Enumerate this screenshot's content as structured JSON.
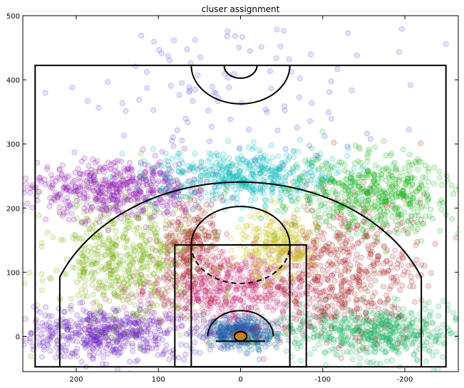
{
  "chart_data": {
    "type": "scatter",
    "title": "cluser assignment",
    "xlabel": "",
    "ylabel": "",
    "xlim": [
      265,
      -265
    ],
    "ylim": [
      -55,
      500
    ],
    "x_axis_inverted": true,
    "x_ticks": [
      200,
      100,
      0,
      -100,
      -200
    ],
    "y_ticks": [
      0,
      100,
      200,
      300,
      400,
      500
    ],
    "grid": false,
    "legend": "none",
    "marker": "circle",
    "marker_opacity": 0.15,
    "court": {
      "boundary": {
        "x": [
          -250,
          250
        ],
        "y": [
          -47.5,
          422.5
        ]
      },
      "outer_key": {
        "x": [
          -80,
          80
        ],
        "y": [
          -47.5,
          142.5
        ]
      },
      "inner_key": {
        "x": [
          -60,
          60
        ],
        "y": [
          -47.5,
          142.5
        ]
      },
      "free_throw_circle": {
        "center": [
          0,
          142.5
        ],
        "radius": 60
      },
      "restricted_area_radius": 40,
      "backboard": {
        "x": [
          -30,
          30
        ],
        "y": -7.5
      },
      "hoop": {
        "center": [
          0,
          0
        ],
        "radius": 7.5
      },
      "three_point": {
        "corner_x": 220,
        "corner_top_y": 92.5,
        "arc_radius": 237.5
      },
      "center_court": {
        "center": [
          0,
          422.5
        ],
        "outer_radius": 60,
        "inner_radius": 20
      }
    },
    "series": [
      {
        "color": "#1f5fa8",
        "center": [
          0,
          5
        ],
        "spread": [
          22,
          12
        ],
        "count": 420
      },
      {
        "color": "#e87d10",
        "center": [
          0,
          0
        ],
        "spread": [
          4,
          3
        ],
        "count": 40
      },
      {
        "color": "#6a1fc0",
        "center": [
          160,
          5
        ],
        "spread": [
          55,
          20
        ],
        "count": 550
      },
      {
        "color": "#12b05a",
        "center": [
          -165,
          5
        ],
        "spread": [
          55,
          20
        ],
        "count": 550
      },
      {
        "color": "#c41c6a",
        "center": [
          15,
          75
        ],
        "spread": [
          60,
          28
        ],
        "count": 520
      },
      {
        "color": "#ab1a1a",
        "center": [
          -130,
          105
        ],
        "spread": [
          45,
          55
        ],
        "count": 520
      },
      {
        "color": "#ab1a1a",
        "center": [
          60,
          140
        ],
        "spread": [
          18,
          35
        ],
        "count": 240
      },
      {
        "color": "#6fb000",
        "center": [
          140,
          120
        ],
        "spread": [
          45,
          50
        ],
        "count": 550
      },
      {
        "color": "#c8c014",
        "center": [
          -45,
          140
        ],
        "spread": [
          22,
          25
        ],
        "count": 260
      },
      {
        "color": "#8a10b0",
        "center": [
          150,
          230
        ],
        "spread": [
          55,
          22
        ],
        "count": 520
      },
      {
        "color": "#00b8b8",
        "center": [
          -5,
          250
        ],
        "spread": [
          60,
          20
        ],
        "count": 500
      },
      {
        "color": "#10b010",
        "center": [
          -160,
          220
        ],
        "spread": [
          50,
          30
        ],
        "count": 520
      },
      {
        "color": "#4040e0",
        "center": [
          10,
          380
        ],
        "spread": [
          110,
          60
        ],
        "count": 110
      }
    ]
  }
}
